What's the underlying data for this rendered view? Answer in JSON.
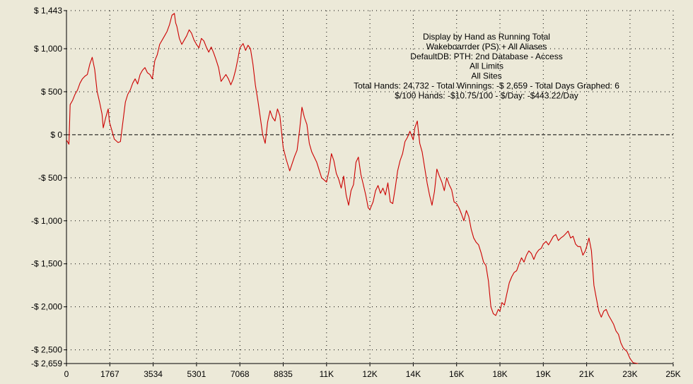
{
  "chart_data": {
    "type": "line",
    "title_lines": [
      "Display by Hand as Running Total",
      "Wakeboarrder (PS) + All Aliases",
      "DefaultDB: PTH: 2nd Database - Access",
      "All Limits",
      "All Sites",
      "Total Hands: 24,732 - Total Winnings: -$ 2,659 - Total Days Graphed: 6",
      "$/100 Hands: -$10.75/100 - $/Day: -$443.22/Day"
    ],
    "y_ticks": [
      {
        "value": 1443,
        "label": "$ 1,443"
      },
      {
        "value": 1000,
        "label": "$ 1,000"
      },
      {
        "value": 500,
        "label": "$ 500"
      },
      {
        "value": 0,
        "label": "$ 0"
      },
      {
        "value": -500,
        "label": "-$ 500"
      },
      {
        "value": -1000,
        "label": "-$ 1,000"
      },
      {
        "value": -1500,
        "label": "-$ 1,500"
      },
      {
        "value": -2000,
        "label": "-$ 2,000"
      },
      {
        "value": -2500,
        "label": "-$ 2,500"
      },
      {
        "value": -2659,
        "label": "-$ 2,659"
      }
    ],
    "x_ticks": [
      {
        "value": 0,
        "label": "0"
      },
      {
        "value": 1767,
        "label": "1767"
      },
      {
        "value": 3534,
        "label": "3534"
      },
      {
        "value": 5301,
        "label": "5301"
      },
      {
        "value": 7068,
        "label": "7068"
      },
      {
        "value": 8835,
        "label": "8835"
      },
      {
        "value": 10602,
        "label": "11K"
      },
      {
        "value": 12369,
        "label": "12K"
      },
      {
        "value": 14136,
        "label": "14K"
      },
      {
        "value": 15903,
        "label": "16K"
      },
      {
        "value": 17670,
        "label": "18K"
      },
      {
        "value": 19437,
        "label": "19K"
      },
      {
        "value": 21204,
        "label": "21K"
      },
      {
        "value": 22971,
        "label": "23K"
      },
      {
        "value": 24732,
        "label": "25K"
      }
    ],
    "xlim": [
      0,
      24732
    ],
    "ylim": [
      -2659,
      1443
    ],
    "grid": true,
    "series": [
      {
        "color": "#cc0000",
        "points": [
          [
            0,
            -60
          ],
          [
            100,
            -110
          ],
          [
            150,
            350
          ],
          [
            250,
            400
          ],
          [
            350,
            470
          ],
          [
            450,
            520
          ],
          [
            550,
            600
          ],
          [
            650,
            650
          ],
          [
            750,
            680
          ],
          [
            850,
            700
          ],
          [
            950,
            820
          ],
          [
            1050,
            900
          ],
          [
            1150,
            760
          ],
          [
            1250,
            500
          ],
          [
            1350,
            380
          ],
          [
            1450,
            240
          ],
          [
            1500,
            80
          ],
          [
            1600,
            200
          ],
          [
            1700,
            300
          ],
          [
            1750,
            150
          ],
          [
            1850,
            50
          ],
          [
            1950,
            -50
          ],
          [
            2100,
            -90
          ],
          [
            2200,
            -80
          ],
          [
            2300,
            150
          ],
          [
            2400,
            380
          ],
          [
            2500,
            470
          ],
          [
            2600,
            520
          ],
          [
            2700,
            600
          ],
          [
            2800,
            650
          ],
          [
            2900,
            590
          ],
          [
            3000,
            700
          ],
          [
            3100,
            750
          ],
          [
            3200,
            780
          ],
          [
            3300,
            720
          ],
          [
            3400,
            700
          ],
          [
            3500,
            650
          ],
          [
            3534,
            720
          ],
          [
            3600,
            860
          ],
          [
            3700,
            930
          ],
          [
            3800,
            1050
          ],
          [
            3900,
            1100
          ],
          [
            4000,
            1150
          ],
          [
            4100,
            1200
          ],
          [
            4200,
            1280
          ],
          [
            4300,
            1390
          ],
          [
            4400,
            1410
          ],
          [
            4450,
            1300
          ],
          [
            4500,
            1260
          ],
          [
            4600,
            1120
          ],
          [
            4700,
            1050
          ],
          [
            4800,
            1100
          ],
          [
            4900,
            1150
          ],
          [
            5000,
            1220
          ],
          [
            5100,
            1180
          ],
          [
            5200,
            1100
          ],
          [
            5301,
            1050
          ],
          [
            5400,
            1010
          ],
          [
            5500,
            1120
          ],
          [
            5600,
            1090
          ],
          [
            5700,
            1020
          ],
          [
            5800,
            960
          ],
          [
            5900,
            1020
          ],
          [
            6000,
            950
          ],
          [
            6100,
            870
          ],
          [
            6200,
            780
          ],
          [
            6300,
            620
          ],
          [
            6400,
            660
          ],
          [
            6500,
            700
          ],
          [
            6600,
            650
          ],
          [
            6700,
            580
          ],
          [
            6800,
            650
          ],
          [
            6900,
            760
          ],
          [
            7000,
            900
          ],
          [
            7068,
            1010
          ],
          [
            7200,
            1060
          ],
          [
            7300,
            980
          ],
          [
            7400,
            1040
          ],
          [
            7500,
            1000
          ],
          [
            7600,
            820
          ],
          [
            7700,
            580
          ],
          [
            7800,
            400
          ],
          [
            7900,
            200
          ],
          [
            8000,
            0
          ],
          [
            8100,
            -100
          ],
          [
            8200,
            150
          ],
          [
            8300,
            280
          ],
          [
            8400,
            200
          ],
          [
            8500,
            160
          ],
          [
            8600,
            300
          ],
          [
            8700,
            220
          ],
          [
            8835,
            -150
          ],
          [
            8950,
            -280
          ],
          [
            9100,
            -420
          ],
          [
            9300,
            -250
          ],
          [
            9400,
            -180
          ],
          [
            9500,
            50
          ],
          [
            9600,
            320
          ],
          [
            9700,
            200
          ],
          [
            9800,
            120
          ],
          [
            9900,
            -100
          ],
          [
            10000,
            -200
          ],
          [
            10200,
            -320
          ],
          [
            10400,
            -500
          ],
          [
            10602,
            -550
          ],
          [
            10700,
            -420
          ],
          [
            10800,
            -220
          ],
          [
            10900,
            -300
          ],
          [
            11000,
            -450
          ],
          [
            11100,
            -520
          ],
          [
            11200,
            -620
          ],
          [
            11300,
            -480
          ],
          [
            11400,
            -700
          ],
          [
            11500,
            -820
          ],
          [
            11600,
            -650
          ],
          [
            11700,
            -580
          ],
          [
            11800,
            -320
          ],
          [
            11900,
            -260
          ],
          [
            12000,
            -460
          ],
          [
            12100,
            -580
          ],
          [
            12200,
            -700
          ],
          [
            12300,
            -850
          ],
          [
            12369,
            -870
          ],
          [
            12500,
            -780
          ],
          [
            12600,
            -650
          ],
          [
            12700,
            -590
          ],
          [
            12800,
            -680
          ],
          [
            12900,
            -620
          ],
          [
            13000,
            -700
          ],
          [
            13100,
            -560
          ],
          [
            13200,
            -780
          ],
          [
            13300,
            -800
          ],
          [
            13400,
            -620
          ],
          [
            13500,
            -420
          ],
          [
            13600,
            -300
          ],
          [
            13700,
            -220
          ],
          [
            13800,
            -80
          ],
          [
            13900,
            -30
          ],
          [
            14000,
            40
          ],
          [
            14136,
            -60
          ],
          [
            14200,
            80
          ],
          [
            14300,
            160
          ],
          [
            14400,
            -100
          ],
          [
            14500,
            -200
          ],
          [
            14600,
            -380
          ],
          [
            14700,
            -560
          ],
          [
            14800,
            -700
          ],
          [
            14900,
            -820
          ],
          [
            15000,
            -660
          ],
          [
            15100,
            -400
          ],
          [
            15200,
            -480
          ],
          [
            15300,
            -550
          ],
          [
            15400,
            -650
          ],
          [
            15500,
            -500
          ],
          [
            15600,
            -580
          ],
          [
            15700,
            -640
          ],
          [
            15800,
            -780
          ],
          [
            15903,
            -800
          ],
          [
            16000,
            -850
          ],
          [
            16100,
            -920
          ],
          [
            16200,
            -1000
          ],
          [
            16300,
            -880
          ],
          [
            16400,
            -950
          ],
          [
            16500,
            -1100
          ],
          [
            16600,
            -1200
          ],
          [
            16700,
            -1250
          ],
          [
            16800,
            -1280
          ],
          [
            16900,
            -1370
          ],
          [
            17000,
            -1480
          ],
          [
            17100,
            -1520
          ],
          [
            17200,
            -1700
          ],
          [
            17300,
            -2000
          ],
          [
            17400,
            -2080
          ],
          [
            17500,
            -2100
          ],
          [
            17600,
            -2030
          ],
          [
            17670,
            -2050
          ],
          [
            17750,
            -1950
          ],
          [
            17850,
            -1980
          ],
          [
            17950,
            -1850
          ],
          [
            18050,
            -1720
          ],
          [
            18150,
            -1650
          ],
          [
            18250,
            -1600
          ],
          [
            18350,
            -1580
          ],
          [
            18450,
            -1500
          ],
          [
            18550,
            -1430
          ],
          [
            18650,
            -1480
          ],
          [
            18750,
            -1400
          ],
          [
            18850,
            -1350
          ],
          [
            18950,
            -1380
          ],
          [
            19050,
            -1450
          ],
          [
            19150,
            -1380
          ],
          [
            19250,
            -1340
          ],
          [
            19350,
            -1320
          ],
          [
            19437,
            -1270
          ],
          [
            19550,
            -1240
          ],
          [
            19650,
            -1280
          ],
          [
            19750,
            -1230
          ],
          [
            19850,
            -1180
          ],
          [
            19950,
            -1160
          ],
          [
            20050,
            -1230
          ],
          [
            20150,
            -1200
          ],
          [
            20250,
            -1180
          ],
          [
            20350,
            -1150
          ],
          [
            20450,
            -1120
          ],
          [
            20550,
            -1200
          ],
          [
            20650,
            -1180
          ],
          [
            20750,
            -1270
          ],
          [
            20850,
            -1300
          ],
          [
            20950,
            -1300
          ],
          [
            21050,
            -1400
          ],
          [
            21150,
            -1350
          ],
          [
            21204,
            -1300
          ],
          [
            21300,
            -1200
          ],
          [
            21400,
            -1350
          ],
          [
            21500,
            -1750
          ],
          [
            21600,
            -1900
          ],
          [
            21700,
            -2050
          ],
          [
            21800,
            -2120
          ],
          [
            21900,
            -2050
          ],
          [
            22000,
            -2030
          ],
          [
            22100,
            -2100
          ],
          [
            22200,
            -2150
          ],
          [
            22300,
            -2200
          ],
          [
            22400,
            -2280
          ],
          [
            22500,
            -2320
          ],
          [
            22600,
            -2420
          ],
          [
            22700,
            -2480
          ],
          [
            22850,
            -2520
          ],
          [
            22971,
            -2600
          ],
          [
            23100,
            -2650
          ],
          [
            23300,
            -2659
          ]
        ]
      }
    ]
  }
}
